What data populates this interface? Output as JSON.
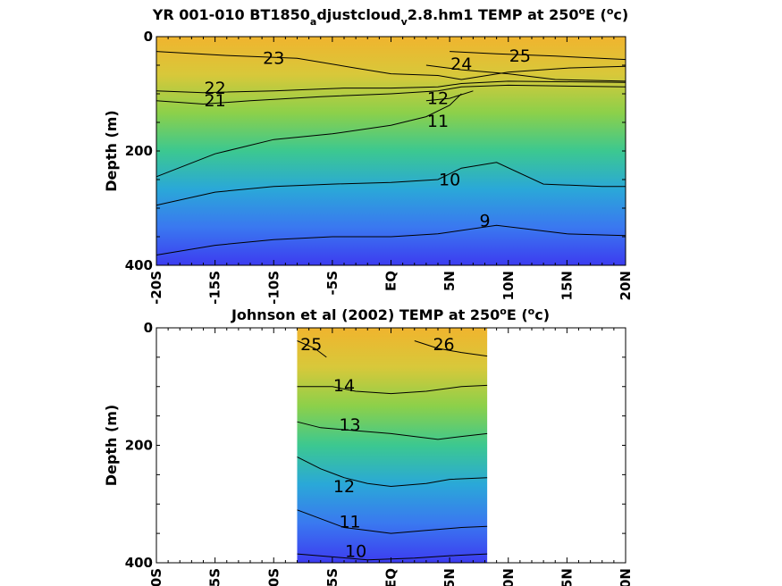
{
  "chart_data": [
    {
      "type": "heatmap",
      "subtype": "filled-contour",
      "title_parts": [
        "YR 001-010 BT1850",
        "a",
        "djustcloud",
        "v",
        "2.8.hm1 TEMP at 250",
        "o",
        "E (",
        "o",
        "c)"
      ],
      "ylabel": "Depth (m)",
      "xlim": [
        -20,
        20
      ],
      "ylim": [
        0,
        400
      ],
      "y_reversed": true,
      "x_ticks": [
        "-20S",
        "-15S",
        "-10S",
        "-5S",
        "EQ",
        "5N",
        "10N",
        "15N",
        "20N"
      ],
      "y_ticks": [
        "0",
        "200",
        "400"
      ],
      "colormap": [
        "#3c3cf0",
        "#3a78f0",
        "#2aa8d8",
        "#3cc890",
        "#8cd04a",
        "#d8c83a",
        "#f0b42e"
      ],
      "data_extent": [
        -20,
        20
      ],
      "contours": [
        {
          "level": 23,
          "label": "23",
          "pts": [
            [
              -20,
              26
            ],
            [
              -14,
              33
            ],
            [
              -8,
              38
            ],
            [
              -3,
              55
            ],
            [
              0,
              65
            ],
            [
              4,
              68
            ],
            [
              6,
              75
            ],
            [
              10,
              62
            ],
            [
              15,
              55
            ],
            [
              20,
              52
            ]
          ],
          "label_at": [
            -10,
            48
          ]
        },
        {
          "level": 22,
          "label": "22",
          "pts": [
            [
              -20,
              95
            ],
            [
              -16,
              98
            ],
            [
              -10,
              95
            ],
            [
              -4,
              90
            ],
            [
              0,
              90
            ],
            [
              4,
              88
            ],
            [
              6,
              82
            ],
            [
              10,
              78
            ],
            [
              20,
              80
            ]
          ],
          "label_at": [
            -15,
            100
          ]
        },
        {
          "level": 21,
          "label": "21",
          "pts": [
            [
              -20,
              112
            ],
            [
              -16,
              118
            ],
            [
              -12,
              112
            ],
            [
              -6,
              105
            ],
            [
              0,
              100
            ],
            [
              4,
              95
            ],
            [
              6,
              88
            ],
            [
              10,
              85
            ],
            [
              20,
              88
            ]
          ],
          "label_at": [
            -15,
            122
          ]
        },
        {
          "level": 11,
          "label": "11",
          "pts": [
            [
              -20,
              245
            ],
            [
              -15,
              205
            ],
            [
              -10,
              180
            ],
            [
              -5,
              170
            ],
            [
              0,
              155
            ],
            [
              3,
              140
            ],
            [
              5,
              120
            ],
            [
              6,
              100
            ]
          ],
          "label_at": [
            4,
            158
          ]
        },
        {
          "level": 10,
          "label": "10",
          "pts": [
            [
              -20,
              295
            ],
            [
              -15,
              272
            ],
            [
              -10,
              262
            ],
            [
              -5,
              258
            ],
            [
              0,
              255
            ],
            [
              4,
              250
            ],
            [
              6,
              230
            ],
            [
              9,
              220
            ],
            [
              13,
              258
            ],
            [
              18,
              262
            ],
            [
              20,
              262
            ]
          ],
          "label_at": [
            5,
            260
          ]
        },
        {
          "level": 9,
          "label": "9",
          "pts": [
            [
              -20,
              382
            ],
            [
              -15,
              365
            ],
            [
              -10,
              355
            ],
            [
              -5,
              350
            ],
            [
              0,
              350
            ],
            [
              4,
              345
            ],
            [
              9,
              330
            ],
            [
              15,
              345
            ],
            [
              20,
              348
            ]
          ],
          "label_at": [
            8,
            332
          ]
        },
        {
          "level": 25,
          "label": "25",
          "pts": [
            [
              5,
              26
            ],
            [
              9,
              30
            ],
            [
              14,
              34
            ],
            [
              20,
              40
            ]
          ],
          "label_at": [
            11,
            44
          ]
        },
        {
          "level": 24,
          "label": "24",
          "pts": [
            [
              3,
              50
            ],
            [
              6,
              58
            ],
            [
              10,
              65
            ],
            [
              14,
              75
            ],
            [
              20,
              78
            ]
          ],
          "label_at": [
            6,
            58
          ]
        },
        {
          "level": 12,
          "label": "12",
          "pts": [
            [
              3,
              112
            ],
            [
              5,
              108
            ],
            [
              7,
              95
            ]
          ],
          "label_at": [
            4,
            118
          ]
        }
      ]
    },
    {
      "type": "heatmap",
      "subtype": "filled-contour",
      "title_parts": [
        "Johnson et al (2002) TEMP at 250",
        "o",
        "E (",
        "o",
        "c)"
      ],
      "ylabel": "Depth (m)",
      "xlim": [
        -20,
        20
      ],
      "ylim": [
        0,
        400
      ],
      "y_reversed": true,
      "x_ticks": [
        "-20S",
        "-15S",
        "-10S",
        "-5S",
        "EQ",
        "5N",
        "10N",
        "15N",
        "20N"
      ],
      "y_ticks": [
        "0",
        "200",
        "400"
      ],
      "colormap": [
        "#3c3cf0",
        "#3a78f0",
        "#2aa8d8",
        "#3cc890",
        "#8cd04a",
        "#d8c83a",
        "#f0b42e"
      ],
      "data_extent": [
        -8,
        8.2
      ],
      "contours": [
        {
          "level": 25,
          "label": "25",
          "pts": [
            [
              -8,
              22
            ],
            [
              -6.5,
              35
            ],
            [
              -5.5,
              50
            ]
          ],
          "label_at": [
            -6.8,
            38
          ]
        },
        {
          "level": 26,
          "label": "26",
          "pts": [
            [
              2,
              22
            ],
            [
              4,
              35
            ],
            [
              6,
              42
            ],
            [
              8.2,
              48
            ]
          ],
          "label_at": [
            4.5,
            38
          ]
        },
        {
          "level": 14,
          "label": "14",
          "pts": [
            [
              -8,
              100
            ],
            [
              -5,
              100
            ],
            [
              -3,
              108
            ],
            [
              0,
              112
            ],
            [
              3,
              108
            ],
            [
              6,
              100
            ],
            [
              8.2,
              98
            ]
          ],
          "label_at": [
            -4,
            108
          ]
        },
        {
          "level": 13,
          "label": "13",
          "pts": [
            [
              -8,
              160
            ],
            [
              -6,
              170
            ],
            [
              -3,
              175
            ],
            [
              0,
              180
            ],
            [
              2,
              185
            ],
            [
              4,
              190
            ],
            [
              6,
              185
            ],
            [
              8.2,
              180
            ]
          ],
          "label_at": [
            -3.5,
            175
          ]
        },
        {
          "level": 12,
          "label": "12",
          "pts": [
            [
              -8,
              220
            ],
            [
              -6,
              240
            ],
            [
              -4,
              255
            ],
            [
              -2,
              265
            ],
            [
              0,
              270
            ],
            [
              3,
              265
            ],
            [
              5,
              258
            ],
            [
              8.2,
              255
            ]
          ],
          "label_at": [
            -4,
            280
          ]
        },
        {
          "level": 11,
          "label": "11",
          "pts": [
            [
              -8,
              310
            ],
            [
              -6,
              325
            ],
            [
              -4,
              340
            ],
            [
              -2,
              345
            ],
            [
              0,
              350
            ],
            [
              3,
              345
            ],
            [
              6,
              340
            ],
            [
              8.2,
              338
            ]
          ],
          "label_at": [
            -3.5,
            340
          ]
        },
        {
          "level": 10,
          "label": "10",
          "pts": [
            [
              -8,
              385
            ],
            [
              -5,
              390
            ],
            [
              -2,
              395
            ],
            [
              2,
              392
            ],
            [
              5,
              388
            ],
            [
              8.2,
              385
            ]
          ],
          "label_at": [
            -3,
            390
          ]
        }
      ]
    }
  ]
}
